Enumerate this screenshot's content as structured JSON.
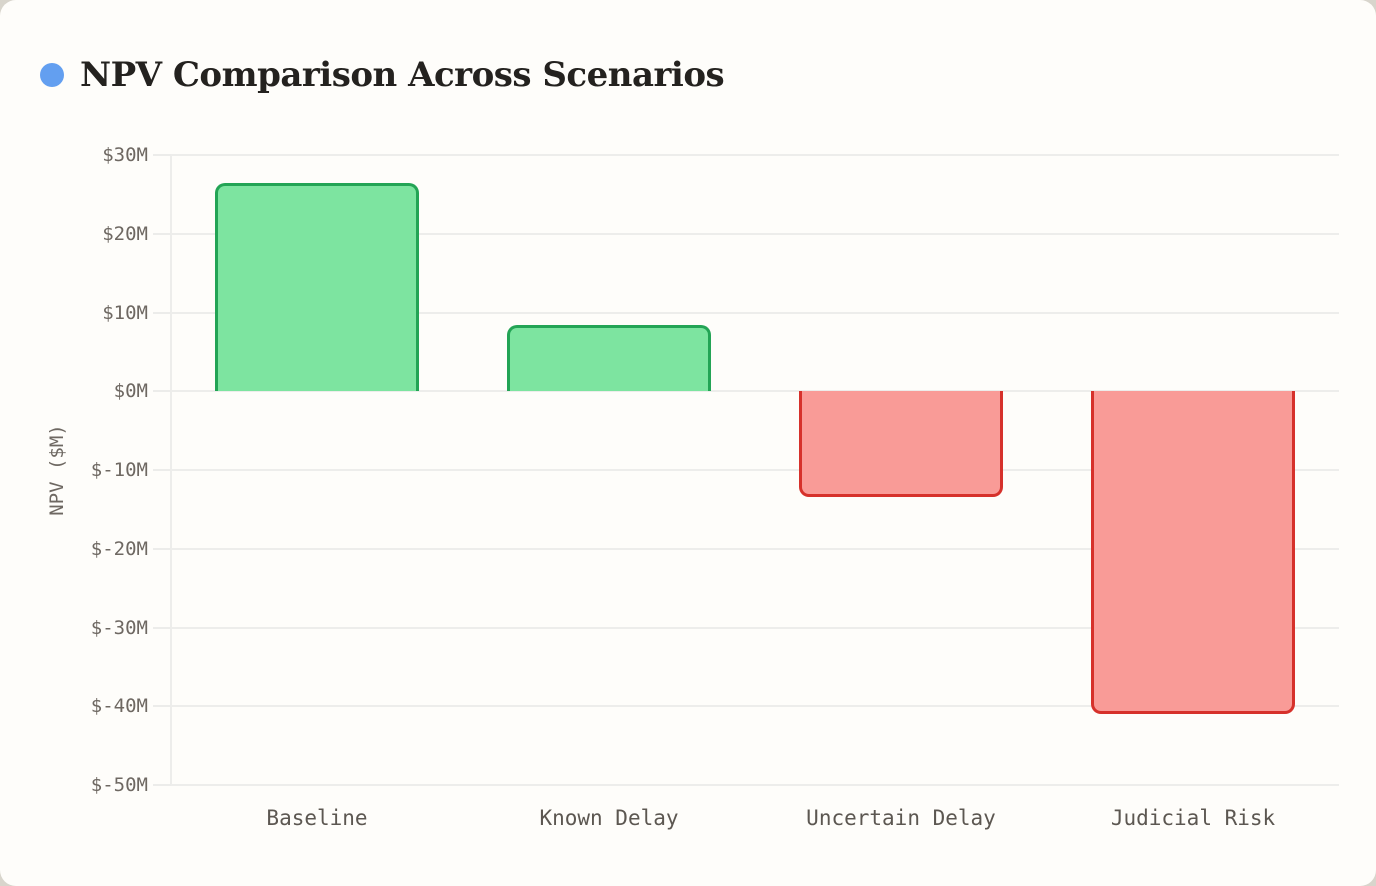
{
  "card": {
    "title_bullet_color": "#639ff0"
  },
  "chart_data": {
    "type": "bar",
    "title": "NPV Comparison Across Scenarios",
    "categories": [
      "Baseline",
      "Known Delay",
      "Uncertain Delay",
      "Judicial Risk"
    ],
    "values": [
      26.5,
      8.4,
      -13.4,
      -41
    ],
    "xlabel": "",
    "ylabel": "NPV ($M)",
    "ylim": [
      -50,
      30
    ],
    "ytick_step": 10,
    "ytick_labels": [
      "$30M",
      "$20M",
      "$10M",
      "$0M",
      "$-10M",
      "$-20M",
      "$-30M",
      "$-40M",
      "$-50M"
    ],
    "grid": true,
    "legend_position": "none",
    "positive_fill": "#7de4a0",
    "positive_border": "#23a455",
    "negative_fill": "#f99b97",
    "negative_border": "#d6312b"
  }
}
